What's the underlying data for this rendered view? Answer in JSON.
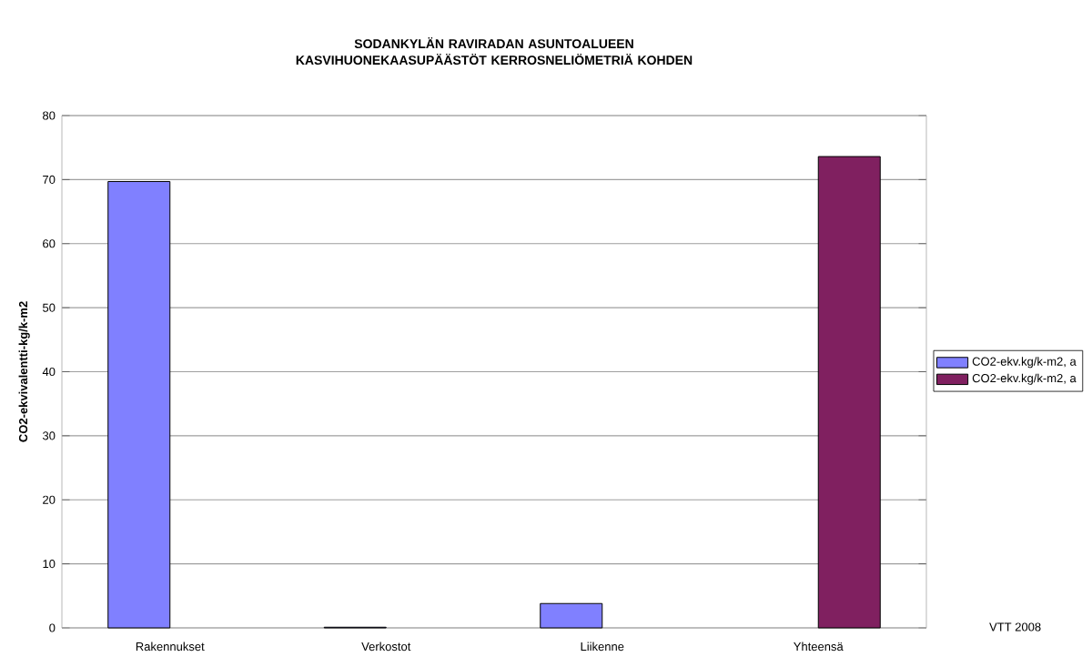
{
  "chart_data": {
    "type": "bar",
    "title": "SODANKYLÄN RAVIRADAN ASUNTOALUEEN KASVIHUONEKAASUPÄÄSTÖT KERROSNELIÖMETRIÄ KOHDEN",
    "ylabel": "CO2-ekvivalentti-kg/k-m2",
    "categories": [
      "Rakennukset",
      "Verkostot",
      "Liikenne",
      "Yhteensä"
    ],
    "series": [
      {
        "name": "CO2-ekv.kg/k-m2, a",
        "color": "#8080ff",
        "values": [
          69.7,
          0.1,
          3.8,
          null
        ]
      },
      {
        "name": "CO2-ekv.kg/k-m2, a",
        "color": "#802060",
        "values": [
          null,
          null,
          null,
          73.6
        ]
      }
    ],
    "ylim": [
      0,
      80
    ],
    "yticks": [
      0,
      10,
      20,
      30,
      40,
      50,
      60,
      70,
      80
    ],
    "grid": "y",
    "legend": "right",
    "annotations": [
      "VTT 2008"
    ]
  }
}
